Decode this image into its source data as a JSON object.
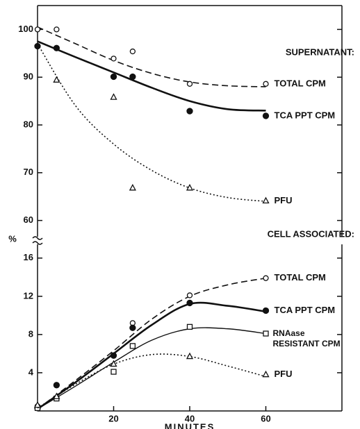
{
  "chart_data": [
    {
      "type": "scatter",
      "title": "SUPERNATANT:",
      "ylabel": "%",
      "x": [
        0,
        5,
        20,
        25,
        40,
        60
      ],
      "xlim": [
        0,
        80
      ],
      "ylim": [
        55,
        105
      ],
      "yticks": [
        60,
        70,
        80,
        90,
        100
      ],
      "curve_x": [
        0,
        10,
        20,
        30,
        40,
        50,
        60
      ],
      "series": [
        {
          "name": "TOTAL CPM",
          "marker": "open-circle",
          "line": "dashed",
          "color": "#111111",
          "values": [
            100,
            100,
            93.9,
            95.4,
            88.6,
            88.6
          ],
          "curve": [
            100.5,
            97,
            93.5,
            90.8,
            89,
            88.2,
            88
          ]
        },
        {
          "name": "TCA PPT CPM",
          "marker": "filled-circle",
          "line": "solid",
          "color": "#111111",
          "values": [
            96.5,
            96.1,
            90.1,
            90.1,
            82.9,
            81.9
          ],
          "curve": [
            97.5,
            94.2,
            91,
            87.8,
            85,
            83.3,
            83
          ]
        },
        {
          "name": "PFU",
          "marker": "triangle",
          "line": "dotted",
          "color": "#111111",
          "values": [
            null,
            89.4,
            85.8,
            66.8,
            66.8,
            64.1
          ],
          "curve": [
            97,
            84,
            76,
            70.5,
            66.8,
            64.8,
            64
          ]
        }
      ]
    },
    {
      "type": "scatter",
      "title": "CELL ASSOCIATED:",
      "xlabel": "MINUTES",
      "x": [
        0,
        5,
        20,
        25,
        40,
        60
      ],
      "xlim": [
        0,
        80
      ],
      "xticks": [
        20,
        40,
        60
      ],
      "ylim": [
        0,
        17
      ],
      "yticks": [
        4,
        8,
        12,
        16
      ],
      "curve_x": [
        0,
        10,
        20,
        30,
        40,
        50,
        60
      ],
      "series": [
        {
          "name": "TOTAL CPM",
          "marker": "open-circle",
          "line": "dashed",
          "color": "#111111",
          "values": [
            0.5,
            null,
            null,
            9.2,
            12.1,
            13.9
          ],
          "curve": [
            0.2,
            3.2,
            6.3,
            9.6,
            12,
            13.2,
            13.9
          ]
        },
        {
          "name": "TCA PPT CPM",
          "marker": "filled-circle",
          "line": "solid",
          "color": "#111111",
          "values": [
            0.3,
            2.7,
            5.8,
            8.7,
            11.3,
            10.5
          ],
          "curve": [
            0.2,
            3,
            6,
            9,
            11.2,
            11,
            10.4
          ]
        },
        {
          "name": "RNAase RESISTANT CPM",
          "marker": "square",
          "line": "thin",
          "color": "#111111",
          "values": [
            0.3,
            1.3,
            4.1,
            6.8,
            8.8,
            8.1
          ],
          "curve": [
            0.2,
            2.6,
            5.1,
            7.4,
            8.6,
            8.6,
            8.1
          ]
        },
        {
          "name": "PFU",
          "marker": "triangle",
          "line": "dotted",
          "color": "#111111",
          "values": [
            0.6,
            1.5,
            4.9,
            null,
            5.7,
            3.8
          ],
          "curve": [
            0.3,
            2.8,
            4.9,
            5.9,
            5.7,
            4.7,
            3.6
          ]
        }
      ]
    }
  ]
}
